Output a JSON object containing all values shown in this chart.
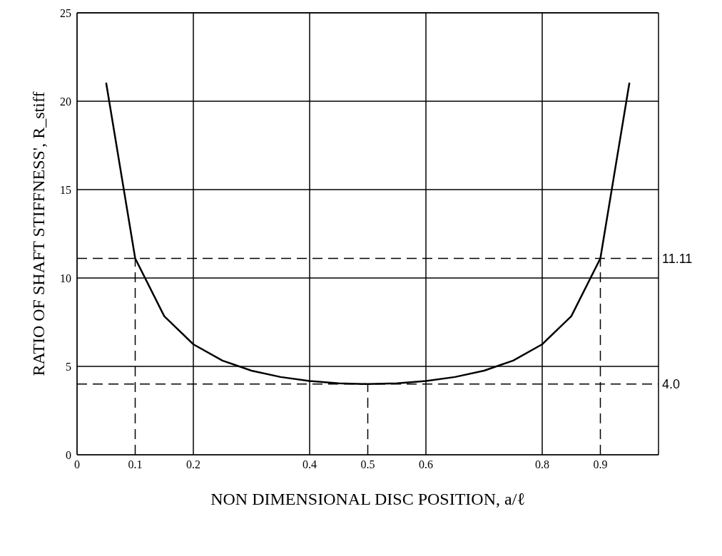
{
  "chart_data": {
    "type": "line",
    "xlabel": "NON DIMENSIONAL DISC POSITION, a/ℓ",
    "ylabel": "RATIO OF SHAFT STIFFNESS', R_stiff",
    "x": [
      0.05,
      0.1,
      0.15,
      0.2,
      0.25,
      0.3,
      0.35,
      0.4,
      0.45,
      0.5,
      0.55,
      0.6,
      0.65,
      0.7,
      0.75,
      0.8,
      0.85,
      0.9,
      0.95
    ],
    "series": [
      {
        "color": "#000000",
        "values": [
          21.05,
          11.11,
          7.84,
          6.25,
          5.33,
          4.76,
          4.4,
          4.17,
          4.04,
          4.0,
          4.04,
          4.17,
          4.4,
          4.76,
          5.33,
          6.25,
          7.84,
          11.11,
          21.05
        ]
      }
    ],
    "xlim": [
      0,
      1
    ],
    "xticks": [
      0,
      0.1,
      0.2,
      0.4,
      0.5,
      0.6,
      0.8,
      0.9
    ],
    "ylim": [
      0,
      25
    ],
    "yticks": [
      0,
      5,
      10,
      15,
      20,
      25
    ],
    "ref_lines": [
      {
        "axis": "y",
        "value": 11.11,
        "label": "11.11",
        "line_style": "dashed"
      },
      {
        "axis": "y",
        "value": 4.0,
        "label": "4.0",
        "line_style": "dashed"
      },
      {
        "axis": "x",
        "value": 0.1,
        "line_style": "dashed"
      },
      {
        "axis": "x",
        "value": 0.5,
        "line_style": "dashed"
      },
      {
        "axis": "x",
        "value": 0.9,
        "line_style": "dashed"
      }
    ],
    "grid": true,
    "legend": false,
    "marker": "none",
    "line_style": "solid"
  }
}
